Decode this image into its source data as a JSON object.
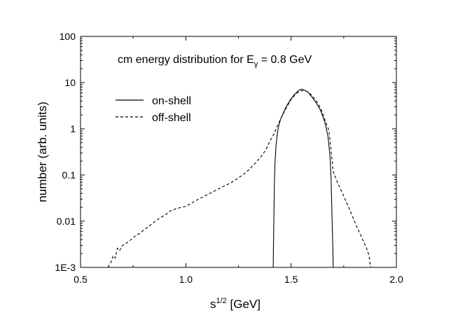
{
  "chart_data": {
    "type": "line",
    "title": "cm energy distribution for E",
    "title_subscript": "γ",
    "title_suffix": " = 0.8 GeV",
    "xlabel": "s",
    "xlabel_superscript": "1/2",
    "xlabel_suffix": " [GeV]",
    "ylabel": "number (arb. units)",
    "xlim": [
      0.5,
      2.0
    ],
    "ylim": [
      0.001,
      100
    ],
    "yscale": "log",
    "x_ticks": [
      0.5,
      1.0,
      1.5,
      2.0
    ],
    "x_tick_labels": [
      "0.5",
      "1.0",
      "1.5",
      "2.0"
    ],
    "y_ticks": [
      0.001,
      0.01,
      0.1,
      1,
      10,
      100
    ],
    "y_tick_labels": [
      "1E-3",
      "0.01",
      "0.1",
      "1",
      "10",
      "100"
    ],
    "legend_position": "upper-left",
    "series": [
      {
        "name": "on-shell",
        "style": "solid",
        "x": [
          1.415,
          1.418,
          1.421,
          1.424,
          1.428,
          1.433,
          1.44,
          1.45,
          1.465,
          1.48,
          1.5,
          1.52,
          1.54,
          1.55,
          1.56,
          1.58,
          1.6,
          1.62,
          1.64,
          1.66,
          1.675,
          1.685,
          1.69,
          1.695,
          1.698,
          1.7
        ],
        "y": [
          0.001,
          0.01,
          0.08,
          0.2,
          0.4,
          0.7,
          1.1,
          1.6,
          2.3,
          3.2,
          4.5,
          5.8,
          7.0,
          7.2,
          7.0,
          6.2,
          4.8,
          3.6,
          2.5,
          1.4,
          0.7,
          0.25,
          0.08,
          0.01,
          0.003,
          0.001
        ]
      },
      {
        "name": "off-shell",
        "style": "dashed",
        "x": [
          0.63,
          0.645,
          0.655,
          0.665,
          0.675,
          0.685,
          0.7,
          0.72,
          0.74,
          0.76,
          0.78,
          0.8,
          0.82,
          0.84,
          0.86,
          0.88,
          0.9,
          0.93,
          0.96,
          1.0,
          1.03,
          1.06,
          1.1,
          1.14,
          1.18,
          1.2,
          1.23,
          1.27,
          1.3,
          1.33,
          1.36,
          1.38,
          1.4,
          1.42,
          1.44,
          1.46,
          1.48,
          1.5,
          1.52,
          1.54,
          1.56,
          1.58,
          1.6,
          1.62,
          1.64,
          1.66,
          1.68,
          1.7,
          1.72,
          1.75,
          1.78,
          1.81,
          1.84,
          1.86,
          1.87,
          1.875,
          1.88
        ],
        "y": [
          0.001,
          0.0013,
          0.0018,
          0.0016,
          0.0026,
          0.0023,
          0.003,
          0.0034,
          0.004,
          0.0048,
          0.0054,
          0.0064,
          0.0075,
          0.0088,
          0.0105,
          0.012,
          0.0135,
          0.017,
          0.019,
          0.021,
          0.025,
          0.03,
          0.037,
          0.046,
          0.057,
          0.063,
          0.075,
          0.1,
          0.13,
          0.18,
          0.26,
          0.35,
          0.55,
          0.8,
          1.3,
          2.0,
          3.0,
          4.3,
          5.5,
          6.5,
          6.8,
          6.3,
          5.2,
          4.0,
          2.8,
          1.6,
          0.9,
          0.12,
          0.07,
          0.035,
          0.017,
          0.008,
          0.004,
          0.0025,
          0.0018,
          0.0012,
          0.001
        ]
      }
    ]
  }
}
